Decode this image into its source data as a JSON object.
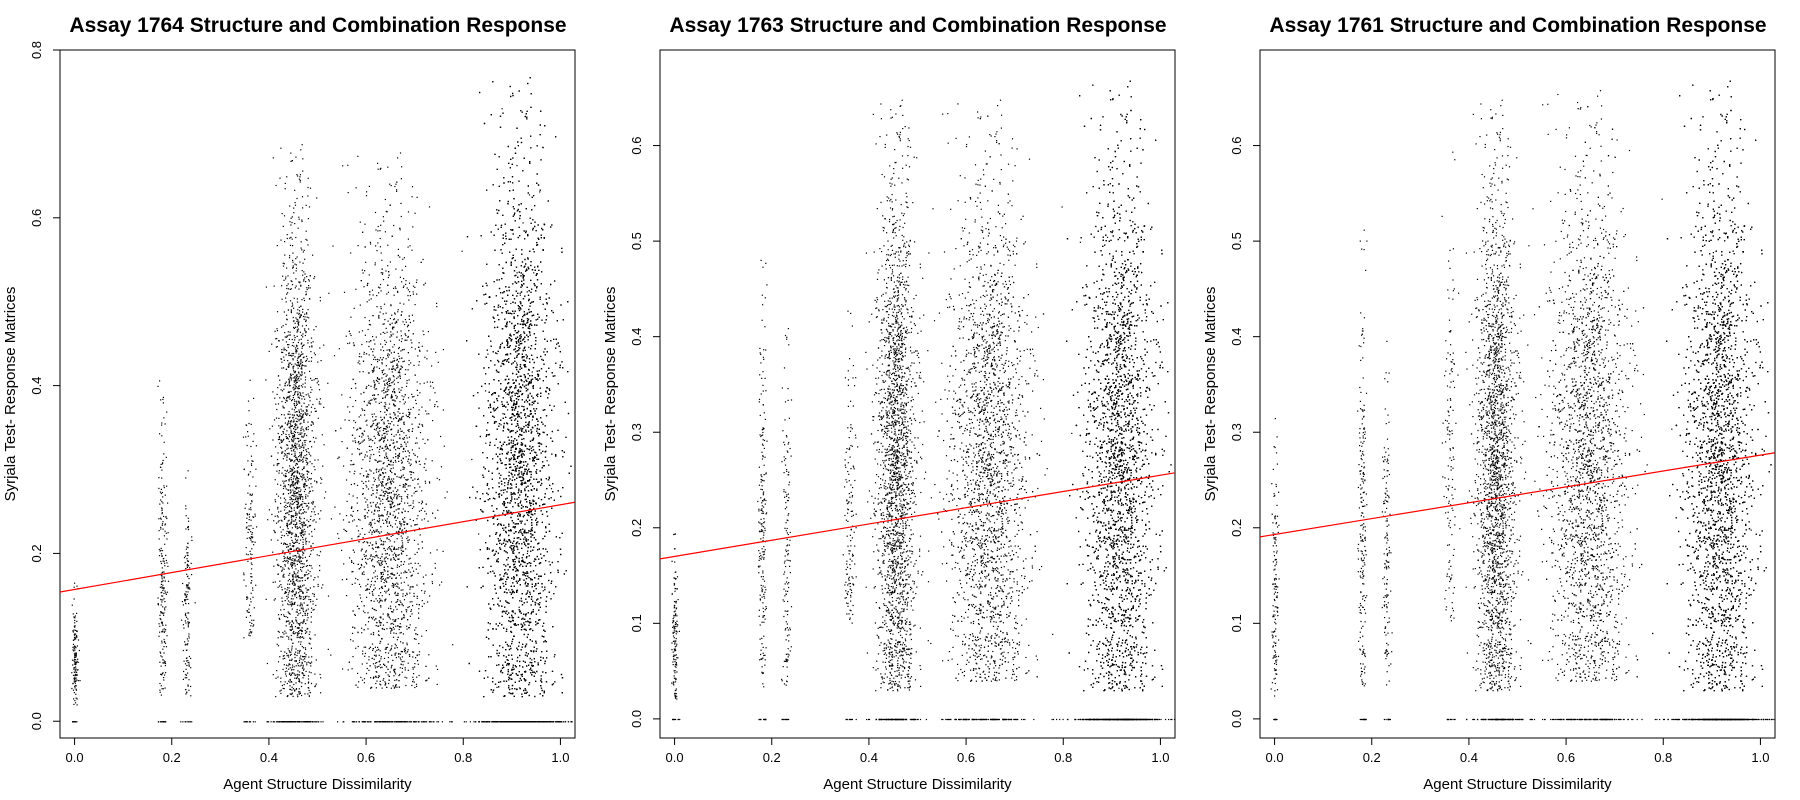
{
  "chart_data": [
    {
      "type": "scatter",
      "title": "Assay 1764 Structure and Combination Response",
      "xlabel": "Agent Structure Dissimilarity",
      "ylabel": "Syrjala Test- Response Matrices",
      "xlim": [
        -0.03,
        1.03
      ],
      "ylim": [
        -0.02,
        0.8
      ],
      "x_ticks": [
        "0.0",
        "0.2",
        "0.4",
        "0.6",
        "0.8",
        "1.0"
      ],
      "y_ticks": [
        "0.0",
        "0.2",
        "0.4",
        "0.6",
        "0.8"
      ],
      "grid": false,
      "point_color": "#000000",
      "regression_line": {
        "color": "#ff0000",
        "intercept": 0.157,
        "slope": 0.101
      },
      "clusters": [
        {
          "x": 0.0,
          "x_spread": 0.003,
          "y_min": 0.02,
          "y_max": 0.17,
          "density": 0.02
        },
        {
          "x": 0.18,
          "x_spread": 0.004,
          "y_min": 0.03,
          "y_max": 0.41,
          "density": 0.03
        },
        {
          "x": 0.23,
          "x_spread": 0.004,
          "y_min": 0.03,
          "y_max": 0.3,
          "density": 0.02
        },
        {
          "x": 0.36,
          "x_spread": 0.006,
          "y_min": 0.1,
          "y_max": 0.45,
          "density": 0.02
        },
        {
          "x": 0.455,
          "x_spread": 0.02,
          "y_min": 0.03,
          "y_max": 0.69,
          "density": 0.3
        },
        {
          "x": 0.645,
          "x_spread": 0.04,
          "y_min": 0.04,
          "y_max": 0.68,
          "density": 0.35
        },
        {
          "x": 0.915,
          "x_spread": 0.035,
          "y_min": 0.03,
          "y_max": 0.77,
          "density": 1.0
        }
      ]
    },
    {
      "type": "scatter",
      "title": "Assay 1763 Structure and Combination Response",
      "xlabel": "Agent Structure Dissimilarity",
      "ylabel": "Syrjala Test- Response Matrices",
      "xlim": [
        -0.03,
        1.03
      ],
      "ylim": [
        -0.02,
        0.7
      ],
      "x_ticks": [
        "0.0",
        "0.2",
        "0.4",
        "0.6",
        "0.8",
        "1.0"
      ],
      "y_ticks": [
        "0.0",
        "0.1",
        "0.2",
        "0.3",
        "0.4",
        "0.5",
        "0.6"
      ],
      "grid": false,
      "point_color": "#000000",
      "regression_line": {
        "color": "#ff0000",
        "intercept": 0.17,
        "slope": 0.085
      },
      "clusters": [
        {
          "x": 0.0,
          "x_spread": 0.003,
          "y_min": 0.02,
          "y_max": 0.2,
          "density": 0.02
        },
        {
          "x": 0.18,
          "x_spread": 0.004,
          "y_min": 0.03,
          "y_max": 0.5,
          "density": 0.03
        },
        {
          "x": 0.23,
          "x_spread": 0.004,
          "y_min": 0.03,
          "y_max": 0.45,
          "density": 0.02
        },
        {
          "x": 0.36,
          "x_spread": 0.006,
          "y_min": 0.1,
          "y_max": 0.45,
          "density": 0.02
        },
        {
          "x": 0.455,
          "x_spread": 0.02,
          "y_min": 0.03,
          "y_max": 0.65,
          "density": 0.32
        },
        {
          "x": 0.645,
          "x_spread": 0.04,
          "y_min": 0.04,
          "y_max": 0.65,
          "density": 0.38
        },
        {
          "x": 0.915,
          "x_spread": 0.035,
          "y_min": 0.03,
          "y_max": 0.67,
          "density": 1.0
        }
      ]
    },
    {
      "type": "scatter",
      "title": "Assay 1761 Structure and Combination Response",
      "xlabel": "Agent Structure Dissimilarity",
      "ylabel": "Syrjala Test- Response Matrices",
      "xlim": [
        -0.03,
        1.03
      ],
      "ylim": [
        -0.02,
        0.7
      ],
      "x_ticks": [
        "0.0",
        "0.2",
        "0.4",
        "0.6",
        "0.8",
        "1.0"
      ],
      "y_ticks": [
        "0.0",
        "0.1",
        "0.2",
        "0.3",
        "0.4",
        "0.5",
        "0.6"
      ],
      "grid": false,
      "point_color": "#000000",
      "regression_line": {
        "color": "#ff0000",
        "intercept": 0.193,
        "slope": 0.083
      },
      "clusters": [
        {
          "x": 0.0,
          "x_spread": 0.003,
          "y_min": 0.02,
          "y_max": 0.32,
          "density": 0.02
        },
        {
          "x": 0.18,
          "x_spread": 0.004,
          "y_min": 0.03,
          "y_max": 0.54,
          "density": 0.03
        },
        {
          "x": 0.23,
          "x_spread": 0.004,
          "y_min": 0.03,
          "y_max": 0.44,
          "density": 0.02
        },
        {
          "x": 0.36,
          "x_spread": 0.006,
          "y_min": 0.1,
          "y_max": 0.6,
          "density": 0.02
        },
        {
          "x": 0.455,
          "x_spread": 0.02,
          "y_min": 0.03,
          "y_max": 0.65,
          "density": 0.32
        },
        {
          "x": 0.645,
          "x_spread": 0.04,
          "y_min": 0.04,
          "y_max": 0.66,
          "density": 0.38
        },
        {
          "x": 0.915,
          "x_spread": 0.035,
          "y_min": 0.03,
          "y_max": 0.67,
          "density": 1.0
        }
      ]
    }
  ]
}
